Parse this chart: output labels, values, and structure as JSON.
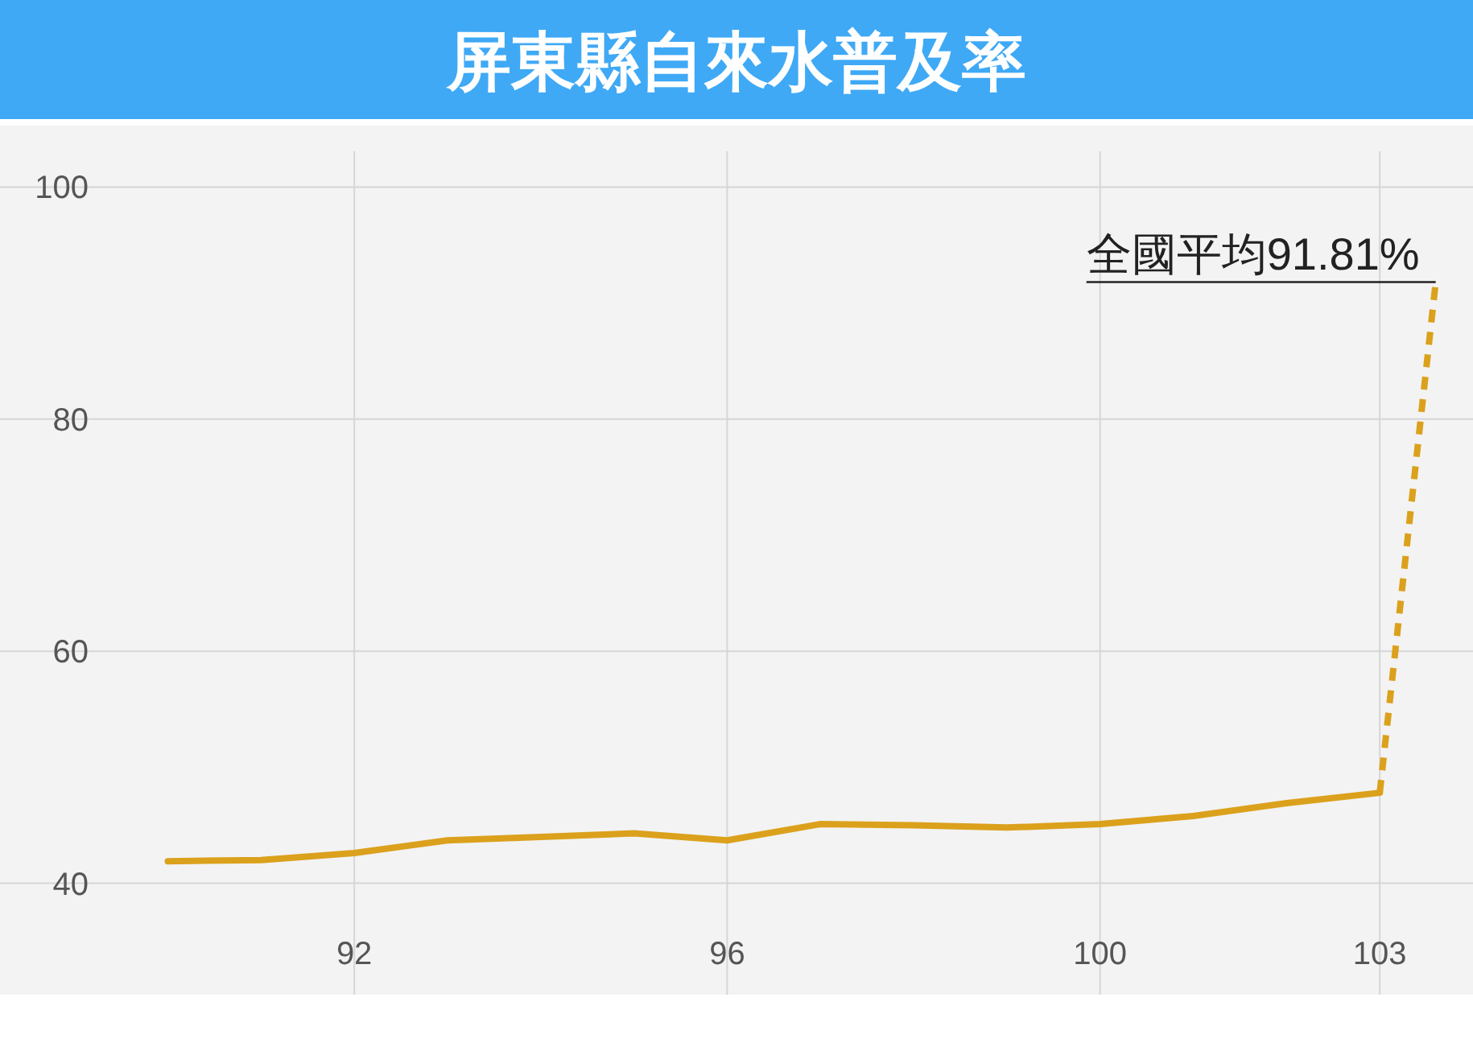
{
  "chart_data": {
    "type": "line",
    "title": "屏東縣自來水普及率",
    "series": [
      {
        "color": "#dba11c",
        "line_style": "solid",
        "x": [
          90,
          91,
          92,
          93,
          94,
          95,
          96,
          97,
          98,
          99,
          100,
          101,
          102,
          103
        ],
        "values": [
          41.9,
          42.0,
          42.6,
          43.7,
          44.0,
          44.3,
          43.7,
          45.1,
          45.0,
          44.8,
          45.1,
          45.8,
          46.9,
          47.8
        ]
      },
      {
        "color": "#dba11c",
        "line_style": "dashed",
        "x": [
          103,
          103.6
        ],
        "values": [
          47.8,
          91.81
        ]
      }
    ],
    "annotations": [
      {
        "text": "全國平均91.81%",
        "x": 103.6,
        "y": 91.81
      }
    ],
    "xlim": [
      88.2,
      104
    ],
    "xticks": [
      92,
      96,
      100,
      103
    ],
    "ylim": [
      30.4,
      105.3
    ],
    "yticks": [
      40,
      60,
      80,
      100
    ],
    "grid": true
  }
}
